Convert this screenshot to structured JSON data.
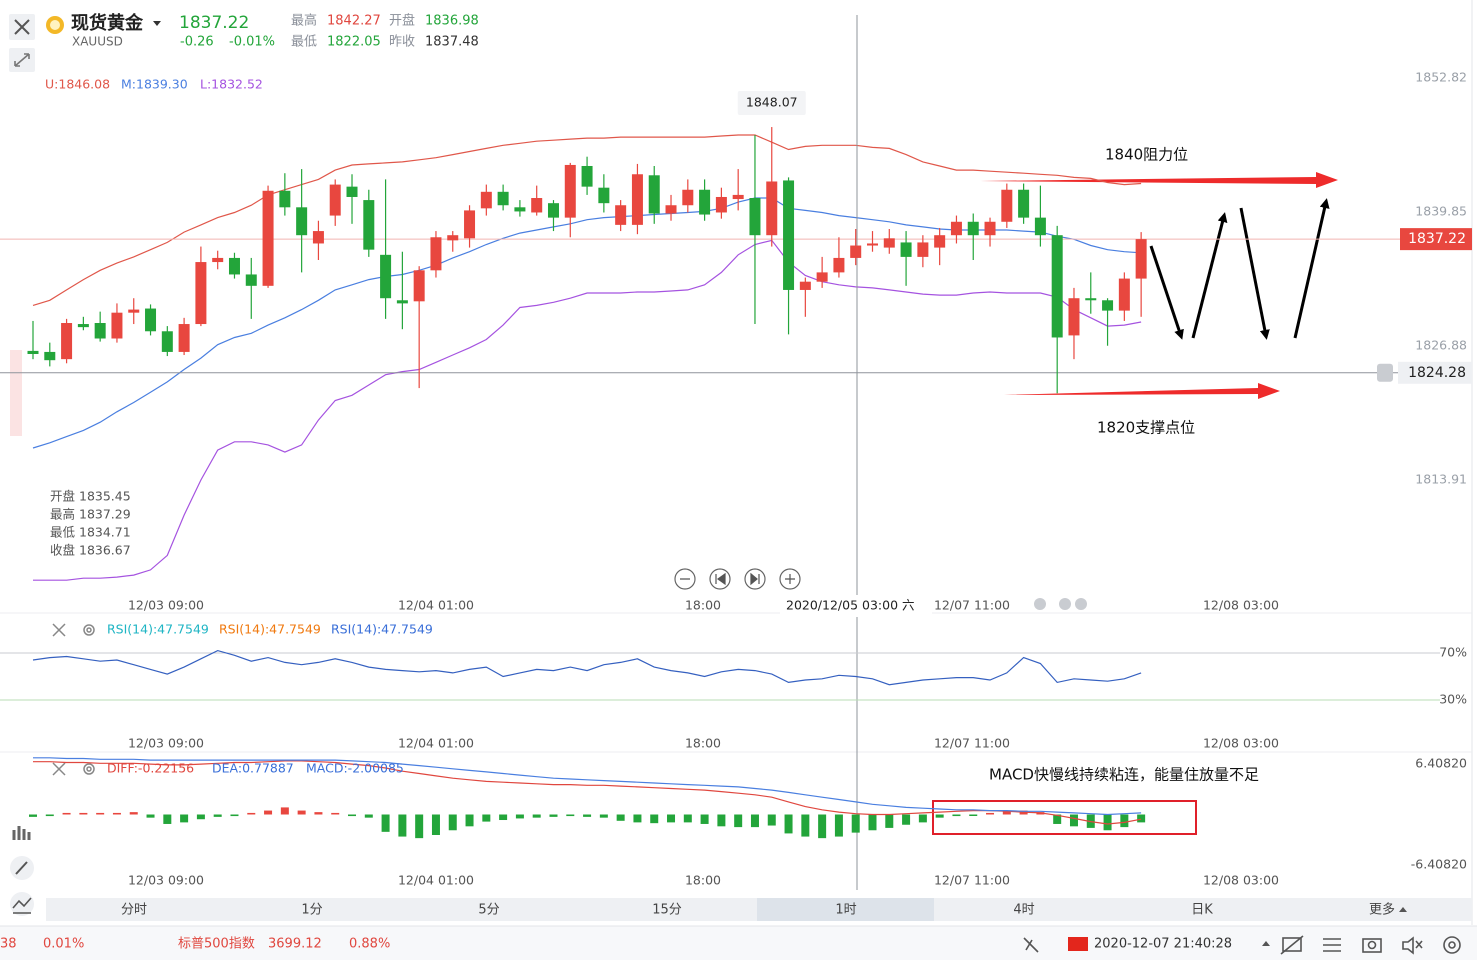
{
  "header": {
    "name": "现货黄金",
    "symbol": "XAUUSD",
    "price": 1837.22,
    "change": -0.26,
    "change_pct": "-0.01%",
    "high_label": "最高",
    "high": 1842.27,
    "open_label": "开盘",
    "open": 1836.98,
    "low_label": "最低",
    "low": 1822.05,
    "prev_label": "昨收",
    "prev_close": 1837.48
  },
  "boll_labels": [
    "U:1846.08",
    "M:1839.30",
    "L:1832.52"
  ],
  "info": [
    {
      "label": "开盘",
      "value": 1835.45
    },
    {
      "label": "最高",
      "value": 1837.29
    },
    {
      "label": "最低",
      "value": 1834.71
    },
    {
      "label": "收盘",
      "value": 1836.67
    }
  ],
  "chart_data": {
    "type": "candlestick",
    "x_labels": [
      "12/03 09:00",
      "12/04 01:00",
      "18:00",
      "12/07 11:00",
      "12/08 03:00"
    ],
    "ylim": [
      1802.77,
      1854.56
    ],
    "yticks": [
      1852.82,
      1839.85,
      1826.88,
      1813.91
    ],
    "up_color": "#e8473f",
    "down_color": "#23a53a",
    "candles": {
      "open": [
        1826.4,
        1826.3,
        1825.6,
        1829.0,
        1829.1,
        1827.6,
        1830.1,
        1830.5,
        1828.3,
        1826.3,
        1829.0,
        1835.0,
        1835.4,
        1833.8,
        1832.7,
        1841.9,
        1840.3,
        1836.8,
        1839.5,
        1842.3,
        1841.0,
        1835.7,
        1831.3,
        1831.2,
        1834.2,
        1837.1,
        1837.3,
        1840.2,
        1841.8,
        1840.3,
        1839.8,
        1840.7,
        1839.3,
        1844.3,
        1842.2,
        1838.6,
        1838.6,
        1843.4,
        1839.7,
        1840.5,
        1842.0,
        1839.8,
        1841.1,
        1841.2,
        1837.6,
        1842.9,
        1832.3,
        1833.1,
        1834.0,
        1835.4,
        1836.6,
        1836.4,
        1836.9,
        1835.5,
        1836.4,
        1837.6,
        1838.9,
        1837.6,
        1838.9,
        1842.0,
        1839.3,
        1837.6,
        1827.9,
        1831.5,
        1831.3,
        1830.3,
        1833.4
      ],
      "high": [
        1829.3,
        1827.2,
        1829.5,
        1829.7,
        1830.2,
        1831.0,
        1831.5,
        1830.9,
        1828.8,
        1829.6,
        1836.5,
        1836.1,
        1835.9,
        1835.4,
        1842.4,
        1843.6,
        1844.0,
        1839.0,
        1843.0,
        1843.5,
        1842.0,
        1843.0,
        1836.0,
        1834.6,
        1838.0,
        1838.0,
        1840.5,
        1842.5,
        1842.5,
        1841.0,
        1842.4,
        1841.0,
        1844.6,
        1845.2,
        1843.5,
        1841.0,
        1844.5,
        1844.3,
        1841.5,
        1843.0,
        1843.0,
        1842.2,
        1844.0,
        1847.3,
        1848.07,
        1843.2,
        1833.5,
        1835.5,
        1837.4,
        1838.2,
        1838.0,
        1838.2,
        1838.0,
        1837.6,
        1838.3,
        1839.5,
        1839.7,
        1839.3,
        1842.6,
        1842.6,
        1842.4,
        1838.5,
        1832.5,
        1834.0,
        1831.5,
        1834.0,
        1837.9
      ],
      "low": [
        1825.6,
        1824.9,
        1825.2,
        1828.4,
        1827.3,
        1827.2,
        1829.0,
        1827.9,
        1825.9,
        1826.0,
        1828.8,
        1834.3,
        1833.4,
        1829.5,
        1832.5,
        1839.5,
        1834.0,
        1835.2,
        1838.5,
        1838.7,
        1835.5,
        1829.5,
        1828.5,
        1822.8,
        1833.5,
        1836.0,
        1836.4,
        1839.5,
        1840.0,
        1839.4,
        1839.5,
        1838.0,
        1837.4,
        1841.5,
        1839.8,
        1838.0,
        1837.7,
        1838.7,
        1839.0,
        1839.8,
        1839.0,
        1839.2,
        1840.0,
        1829.0,
        1836.5,
        1828.0,
        1829.7,
        1832.5,
        1833.5,
        1834.7,
        1836.0,
        1835.8,
        1832.7,
        1834.5,
        1834.7,
        1836.8,
        1835.2,
        1836.5,
        1838.3,
        1838.7,
        1836.5,
        1822.3,
        1825.6,
        1830.0,
        1826.9,
        1829.3,
        1829.7
      ],
      "close": [
        1826.1,
        1825.5,
        1829.1,
        1828.7,
        1827.6,
        1830.1,
        1830.4,
        1828.3,
        1826.3,
        1829.0,
        1835.0,
        1835.4,
        1833.8,
        1832.7,
        1841.9,
        1840.3,
        1837.6,
        1838.0,
        1842.5,
        1841.3,
        1836.2,
        1831.5,
        1831.0,
        1834.2,
        1837.4,
        1837.6,
        1840.0,
        1841.8,
        1840.5,
        1839.9,
        1841.2,
        1839.3,
        1844.4,
        1842.3,
        1840.7,
        1840.5,
        1843.5,
        1839.7,
        1840.5,
        1842.0,
        1839.6,
        1841.3,
        1841.5,
        1837.6,
        1842.8,
        1832.3,
        1833.1,
        1834.0,
        1835.4,
        1836.6,
        1836.8,
        1837.3,
        1835.5,
        1836.9,
        1837.6,
        1838.9,
        1837.6,
        1838.9,
        1842.0,
        1839.3,
        1837.6,
        1827.7,
        1831.5,
        1831.3,
        1830.3,
        1833.4,
        1837.22
      ]
    },
    "bands": [
      {
        "color": "#e0574a",
        "values": [
          1830.8,
          1831.3,
          1832.3,
          1833.3,
          1834.2,
          1834.9,
          1835.5,
          1836.2,
          1836.9,
          1837.9,
          1838.6,
          1839.3,
          1839.8,
          1840.5,
          1841.5,
          1842.0,
          1842.5,
          1843.0,
          1843.9,
          1844.4,
          1844.5,
          1844.6,
          1844.7,
          1844.9,
          1845.1,
          1845.4,
          1845.7,
          1846.0,
          1846.3,
          1846.5,
          1846.7,
          1846.8,
          1846.9,
          1847.0,
          1847.0,
          1847.1,
          1847.1,
          1847.1,
          1847.1,
          1847.1,
          1847.1,
          1847.2,
          1847.3,
          1847.3,
          1846.6,
          1845.9,
          1846.2,
          1846.3,
          1846.3,
          1846.3,
          1846.1,
          1846.0,
          1845.4,
          1844.7,
          1844.3,
          1843.9,
          1843.9,
          1843.8,
          1843.7,
          1843.6,
          1843.5,
          1843.4,
          1843.2,
          1843.1,
          1842.7,
          1842.5,
          1842.6
        ]
      },
      {
        "color": "#4a7fe0",
        "values": [
          1817.0,
          1817.5,
          1818.1,
          1818.7,
          1819.5,
          1820.5,
          1821.4,
          1822.4,
          1823.4,
          1824.6,
          1825.7,
          1827.0,
          1827.7,
          1828.1,
          1828.9,
          1829.6,
          1830.4,
          1831.3,
          1832.3,
          1832.8,
          1833.3,
          1833.6,
          1833.8,
          1834.2,
          1834.7,
          1835.4,
          1836.0,
          1836.7,
          1837.3,
          1837.8,
          1838.1,
          1838.4,
          1838.7,
          1839.1,
          1839.3,
          1839.4,
          1839.5,
          1839.6,
          1839.7,
          1839.8,
          1839.9,
          1840.2,
          1840.8,
          1841.2,
          1841.2,
          1840.2,
          1840.0,
          1839.8,
          1839.5,
          1839.3,
          1839.1,
          1838.9,
          1838.6,
          1838.4,
          1838.2,
          1838.1,
          1838.1,
          1838.1,
          1838.1,
          1838.0,
          1837.9,
          1837.5,
          1837.2,
          1836.6,
          1836.2,
          1836.0,
          1835.9
        ]
      },
      {
        "color": "#a553e0",
        "values": [
          1804.2,
          1804.2,
          1804.2,
          1804.4,
          1804.4,
          1804.5,
          1804.7,
          1805.2,
          1806.6,
          1810.5,
          1813.9,
          1816.8,
          1817.6,
          1817.6,
          1817.3,
          1816.6,
          1817.3,
          1819.7,
          1821.6,
          1822.1,
          1823.1,
          1824.1,
          1824.4,
          1824.6,
          1825.3,
          1826.0,
          1826.7,
          1827.5,
          1828.9,
          1830.6,
          1830.8,
          1831.1,
          1831.5,
          1832.0,
          1832.0,
          1832.0,
          1832.1,
          1832.1,
          1832.2,
          1832.3,
          1832.8,
          1834.0,
          1835.7,
          1836.7,
          1837.1,
          1835.0,
          1833.7,
          1833.1,
          1832.8,
          1832.6,
          1832.5,
          1832.3,
          1832.1,
          1831.9,
          1831.8,
          1831.8,
          1832.0,
          1832.1,
          1832.0,
          1832.0,
          1832.0,
          1831.6,
          1830.4,
          1829.6,
          1828.8,
          1828.9,
          1829.2
        ]
      }
    ],
    "crosshair": {
      "price": 1824.28,
      "time": "2020/12/05 03:00 六"
    },
    "annotations": [
      "1840阻力位",
      "1820支撑点位"
    ]
  },
  "rsi": {
    "labels": [
      {
        "text": "RSI(14):47.7549",
        "color": "#1fb5c4"
      },
      {
        "text": "RSI(14):47.7549",
        "color": "#f07a10"
      },
      {
        "text": "RSI(14):47.7549",
        "color": "#3a6fd8"
      }
    ],
    "color": "#3560c0",
    "values": [
      64,
      66,
      67,
      65,
      63,
      64,
      60,
      56,
      52,
      58,
      65,
      72,
      68,
      63,
      66,
      62,
      60,
      62,
      65,
      62,
      58,
      56,
      55,
      54,
      55,
      53,
      56,
      58,
      50,
      53,
      56,
      55,
      58,
      55,
      60,
      62,
      65,
      58,
      55,
      53,
      50,
      54,
      56,
      55,
      52,
      45,
      47,
      48,
      51,
      50,
      48,
      43,
      45,
      47,
      48,
      49,
      49,
      47,
      53,
      66,
      61,
      45,
      48,
      47,
      46,
      48,
      53
    ],
    "ylim": [
      13,
      81
    ],
    "yticks": [
      {
        "value": 70,
        "label": "70%"
      },
      {
        "value": 30,
        "label": "30%"
      }
    ]
  },
  "macd": {
    "labels": [
      {
        "text": "DIFF:-0.22156",
        "color": "#e0473f"
      },
      {
        "text": "DEA:0.77887",
        "color": "#3a6fd8"
      },
      {
        "text": "MACD:-2.00085",
        "color": "#3a6fd8"
      }
    ],
    "histogram": [
      -0.3,
      -0.2,
      0.2,
      0.2,
      0.2,
      0.2,
      0.3,
      -0.4,
      -1.2,
      -1.0,
      -0.6,
      -0.3,
      -0.2,
      0.2,
      0.5,
      0.9,
      0.5,
      0.3,
      0.2,
      -0.2,
      -0.4,
      -2.2,
      -2.8,
      -3.0,
      -2.6,
      -2.0,
      -1.5,
      -0.9,
      -0.7,
      -0.5,
      -0.4,
      -0.3,
      -0.2,
      -0.3,
      -0.4,
      -0.8,
      -1.0,
      -1.1,
      -1.0,
      -1.0,
      -1.2,
      -1.5,
      -1.6,
      -1.6,
      -1.4,
      -2.4,
      -2.8,
      -3.0,
      -2.8,
      -2.3,
      -2.0,
      -1.7,
      -1.3,
      -1.0,
      -0.4,
      -0.2,
      -0.1,
      0.2,
      0.4,
      0.5,
      0.3,
      -1.2,
      -1.5,
      -1.7,
      -2.0,
      -1.6,
      -1.0
    ],
    "diff": {
      "color": "#e0473f",
      "values": [
        6.7,
        6.7,
        6.6,
        6.6,
        6.5,
        6.5,
        6.5,
        6.4,
        6.3,
        6.3,
        6.4,
        6.5,
        6.6,
        6.6,
        6.7,
        6.8,
        6.8,
        6.7,
        6.6,
        6.4,
        6.2,
        5.9,
        5.5,
        5.2,
        4.9,
        4.6,
        4.4,
        4.2,
        4.1,
        4.0,
        3.9,
        3.8,
        3.8,
        3.7,
        3.7,
        3.6,
        3.5,
        3.4,
        3.3,
        3.2,
        3.1,
        2.9,
        2.7,
        2.5,
        2.2,
        1.6,
        1.0,
        0.6,
        0.3,
        0.1,
        0.0,
        0.0,
        0.1,
        0.2,
        0.3,
        0.4,
        0.5,
        0.5,
        0.4,
        0.3,
        0.2,
        -0.1,
        -0.5,
        -0.9,
        -1.2,
        -1.0,
        -0.6
      ]
    },
    "dea": {
      "color": "#4a7fe0",
      "values": [
        7.2,
        7.2,
        7.1,
        7.1,
        7.0,
        7.0,
        7.0,
        6.9,
        6.9,
        6.9,
        6.9,
        6.9,
        6.9,
        6.9,
        6.9,
        6.9,
        6.9,
        6.9,
        6.9,
        6.8,
        6.7,
        6.6,
        6.4,
        6.2,
        6.0,
        5.8,
        5.6,
        5.4,
        5.2,
        5.0,
        4.8,
        4.6,
        4.5,
        4.4,
        4.3,
        4.2,
        4.1,
        4.0,
        3.9,
        3.8,
        3.7,
        3.6,
        3.5,
        3.3,
        3.1,
        2.8,
        2.5,
        2.2,
        1.9,
        1.6,
        1.3,
        1.1,
        0.9,
        0.8,
        0.7,
        0.6,
        0.6,
        0.5,
        0.5,
        0.4,
        0.4,
        0.3,
        0.2,
        0.1,
        0.0,
        0.1,
        0.2
      ]
    },
    "ylim": [
      -9.58,
      7.55
    ],
    "yticks": [
      {
        "value": 6.4082,
        "label": "6.40820"
      },
      {
        "value": -6.4082,
        "label": "-6.40820"
      }
    ],
    "annotation": "MACD快慢线持续粘连，能量住放量不足"
  },
  "tabs": [
    "分时",
    "1分",
    "5分",
    "15分",
    "1时",
    "4时",
    "日K",
    "更多"
  ],
  "status": {
    "partial": "38",
    "pct": "0.01%",
    "index_name": "标普500指数",
    "index_value": 3699.12,
    "index_pct": "0.88%",
    "datetime": "2020-12-07 21:40:28"
  }
}
